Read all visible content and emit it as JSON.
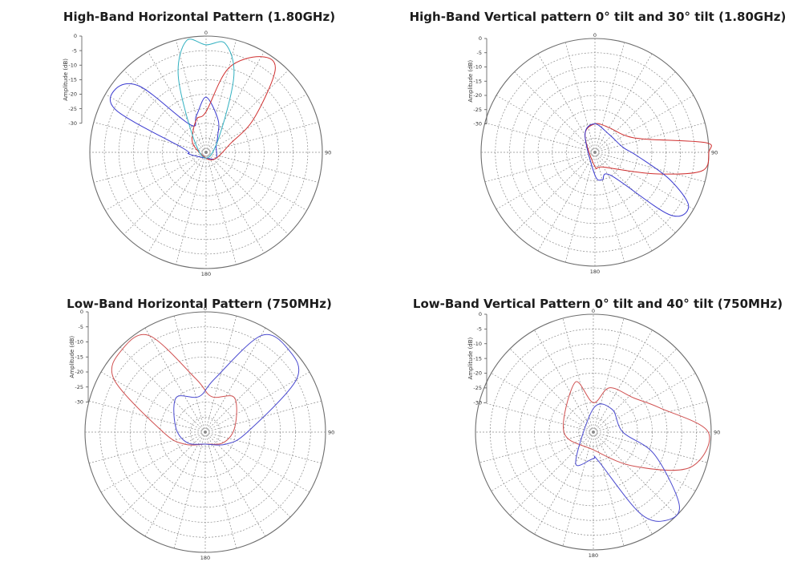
{
  "chart_data": [
    {
      "type": "polar",
      "title": "High-Band Horizontal Pattern (1.80GHz)",
      "ylabel": "Amplitude (dB)",
      "r_ticks": [
        0,
        -5,
        -10,
        -15,
        -20,
        -25,
        -30
      ],
      "angle_labels": [
        "0",
        "90",
        "180"
      ],
      "rlim": [
        -40,
        0
      ],
      "grid": true,
      "series": [
        {
          "color": "#3a3ad0",
          "points": [
            [
              0,
              -21
            ],
            [
              -15,
              -27
            ],
            [
              -30,
              -29
            ],
            [
              -45,
              -8
            ],
            [
              -55,
              -2
            ],
            [
              -65,
              -6
            ],
            [
              -80,
              -32
            ],
            [
              -95,
              -34
            ],
            [
              20,
              -28
            ],
            [
              35,
              -33
            ],
            [
              60,
              -36
            ],
            [
              120,
              -36
            ],
            [
              180,
              -38
            ]
          ]
        },
        {
          "color": "#d03030",
          "points": [
            [
              0,
              -26
            ],
            [
              15,
              -10
            ],
            [
              30,
              -2
            ],
            [
              40,
              -3
            ],
            [
              55,
              -20
            ],
            [
              70,
              -31
            ],
            [
              -15,
              -28
            ],
            [
              -35,
              -32
            ],
            [
              -60,
              -35
            ],
            [
              120,
              -36
            ],
            [
              180,
              -38
            ]
          ]
        },
        {
          "color": "#30b0c0",
          "points": [
            [
              0,
              -3
            ],
            [
              -10,
              -1
            ],
            [
              10,
              -2
            ],
            [
              -20,
              -12
            ],
            [
              20,
              -12
            ],
            [
              -40,
              -33
            ],
            [
              40,
              -33
            ],
            [
              180,
              -38
            ]
          ]
        }
      ]
    },
    {
      "type": "polar",
      "title": "High-Band Vertical pattern 0° tilt and 30° tilt (1.80GHz)",
      "ylabel": "Amplitude (dB)",
      "r_ticks": [
        0,
        -5,
        -10,
        -15,
        -20,
        -25,
        -30
      ],
      "angle_labels": [
        "0",
        "90",
        "180"
      ],
      "rlim": [
        -40,
        0
      ],
      "grid": true,
      "series": [
        {
          "color": "#d03030",
          "points": [
            [
              75,
              -22
            ],
            [
              85,
              -1
            ],
            [
              90,
              0
            ],
            [
              100,
              -2
            ],
            [
              110,
              -18
            ],
            [
              60,
              -28
            ],
            [
              30,
              -30
            ],
            [
              0,
              -30
            ],
            [
              -30,
              -33
            ],
            [
              150,
              -34
            ],
            [
              180,
              -35
            ]
          ]
        },
        {
          "color": "#3a3ad0",
          "points": [
            [
              95,
              -25
            ],
            [
              110,
              -12
            ],
            [
              120,
              -2
            ],
            [
              130,
              -6
            ],
            [
              145,
              -30
            ],
            [
              80,
              -30
            ],
            [
              40,
              -32
            ],
            [
              0,
              -30
            ],
            [
              -30,
              -33
            ],
            [
              165,
              -30
            ],
            [
              180,
              -32
            ]
          ]
        }
      ]
    },
    {
      "type": "polar",
      "title": "Low-Band Horizontal Pattern (750MHz)",
      "ylabel": "Amplitude (dB)",
      "r_ticks": [
        0,
        -5,
        -10,
        -15,
        -20,
        -25,
        -30
      ],
      "angle_labels": [
        "0",
        "90",
        "180"
      ],
      "rlim": [
        -40,
        0
      ],
      "grid": true,
      "series": [
        {
          "color": "#d05050",
          "points": [
            [
              -60,
              -5
            ],
            [
              -45,
              -1
            ],
            [
              -30,
              -3
            ],
            [
              -10,
              -22
            ],
            [
              10,
              -28
            ],
            [
              -90,
              -26
            ],
            [
              -120,
              -32
            ],
            [
              120,
              -33
            ],
            [
              180,
              -36
            ],
            [
              80,
              -30
            ],
            [
              40,
              -25
            ]
          ]
        },
        {
          "color": "#4a4ad0",
          "points": [
            [
              60,
              -5
            ],
            [
              45,
              -1
            ],
            [
              30,
              -3
            ],
            [
              10,
              -22
            ],
            [
              -10,
              -28
            ],
            [
              90,
              -26
            ],
            [
              120,
              -32
            ],
            [
              -120,
              -33
            ],
            [
              180,
              -36
            ],
            [
              -80,
              -30
            ],
            [
              -40,
              -25
            ]
          ]
        }
      ]
    },
    {
      "type": "polar",
      "title": "Low-Band Vertical Pattern 0° tilt and 40° tilt (750MHz)",
      "ylabel": "Amplitude (dB)",
      "r_ticks": [
        0,
        -5,
        -10,
        -15,
        -20,
        -25,
        -30
      ],
      "angle_labels": [
        "0",
        "90",
        "180"
      ],
      "rlim": [
        -40,
        0
      ],
      "grid": true,
      "series": [
        {
          "color": "#d05050",
          "points": [
            [
              70,
              -16
            ],
            [
              90,
              -1
            ],
            [
              110,
              -5
            ],
            [
              130,
              -22
            ],
            [
              50,
              -22
            ],
            [
              20,
              -24
            ],
            [
              0,
              -30
            ],
            [
              -20,
              -22
            ],
            [
              -90,
              -30
            ],
            [
              180,
              -34
            ]
          ]
        },
        {
          "color": "#4a4ad0",
          "points": [
            [
              110,
              -18
            ],
            [
              130,
              -2
            ],
            [
              140,
              -1
            ],
            [
              150,
              -8
            ],
            [
              170,
              -30
            ],
            [
              90,
              -30
            ],
            [
              40,
              -30
            ],
            [
              0,
              -32
            ],
            [
              -150,
              -28
            ],
            [
              180,
              -31
            ]
          ]
        }
      ]
    }
  ]
}
